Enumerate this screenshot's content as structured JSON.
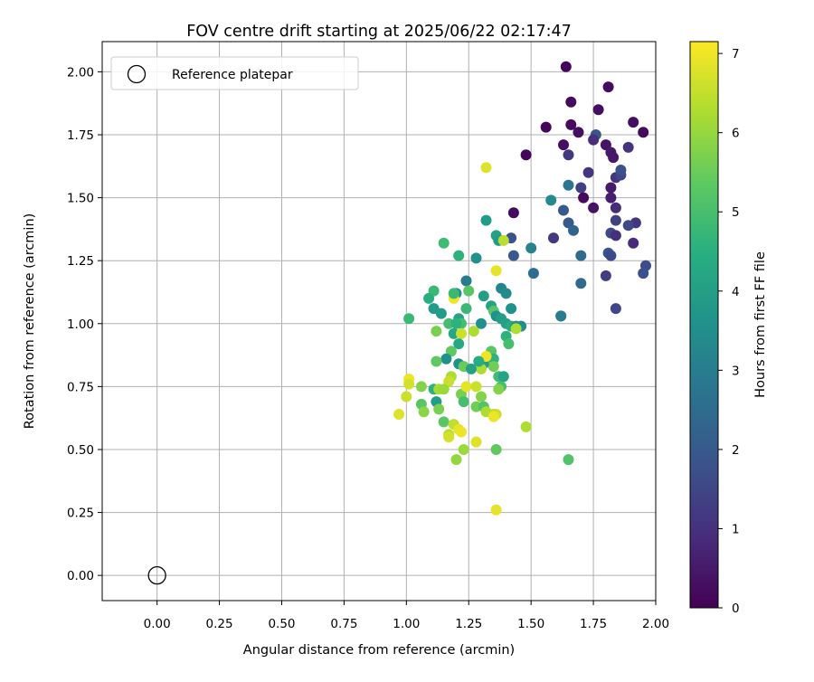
{
  "chart_data": {
    "type": "scatter",
    "title": "FOV centre drift starting at 2025/06/22 02:17:47",
    "xlabel": "Angular distance from reference (arcmin)",
    "ylabel": "Rotation from reference (arcmin)",
    "xlim": [
      -0.22,
      2.0
    ],
    "ylim": [
      -0.1,
      2.12
    ],
    "xticks": [
      "0.00",
      "0.25",
      "0.50",
      "0.75",
      "1.00",
      "1.25",
      "1.50",
      "1.75",
      "2.00"
    ],
    "yticks": [
      "0.00",
      "0.25",
      "0.50",
      "0.75",
      "1.00",
      "1.25",
      "1.50",
      "1.75",
      "2.00"
    ],
    "grid": true,
    "legend": {
      "location": "upper-left",
      "label": "Reference platepar"
    },
    "reference_point": {
      "x": 0.0,
      "y": 0.0
    },
    "colorbar": {
      "label": "Hours from first FF file",
      "colormap": "viridis",
      "range": [
        0,
        7.15
      ],
      "ticks": [
        "0",
        "1",
        "2",
        "3",
        "4",
        "5",
        "6",
        "7"
      ]
    },
    "points": [
      [
        1.64,
        2.02,
        0.1
      ],
      [
        1.81,
        1.94,
        0.2
      ],
      [
        1.66,
        1.88,
        0.2
      ],
      [
        1.77,
        1.85,
        0.3
      ],
      [
        1.66,
        1.79,
        0.2
      ],
      [
        1.56,
        1.78,
        0.1
      ],
      [
        1.69,
        1.76,
        0.3
      ],
      [
        1.91,
        1.8,
        0.3
      ],
      [
        1.95,
        1.76,
        0.2
      ],
      [
        1.63,
        1.71,
        0.3
      ],
      [
        1.8,
        1.71,
        0.4
      ],
      [
        1.82,
        1.68,
        0.5
      ],
      [
        1.83,
        1.66,
        0.5
      ],
      [
        1.48,
        1.67,
        0.1
      ],
      [
        1.89,
        1.7,
        1.1
      ],
      [
        1.65,
        1.67,
        1.2
      ],
      [
        1.76,
        1.75,
        1.9
      ],
      [
        1.75,
        1.73,
        1.0
      ],
      [
        1.73,
        1.6,
        1.1
      ],
      [
        1.84,
        1.58,
        1.1
      ],
      [
        1.86,
        1.59,
        1.5
      ],
      [
        1.86,
        1.61,
        1.8
      ],
      [
        1.7,
        1.54,
        1.4
      ],
      [
        1.82,
        1.54,
        0.5
      ],
      [
        1.65,
        1.55,
        2.8
      ],
      [
        1.58,
        1.49,
        3.4
      ],
      [
        1.71,
        1.5,
        0.2
      ],
      [
        1.82,
        1.5,
        0.6
      ],
      [
        1.75,
        1.46,
        0.4
      ],
      [
        1.84,
        1.46,
        0.9
      ],
      [
        1.63,
        1.45,
        2.0
      ],
      [
        1.43,
        1.44,
        0.2
      ],
      [
        1.65,
        1.4,
        2.0
      ],
      [
        1.84,
        1.41,
        1.4
      ],
      [
        1.82,
        1.36,
        1.6
      ],
      [
        1.84,
        1.35,
        1.0
      ],
      [
        1.92,
        1.4,
        1.1
      ],
      [
        1.89,
        1.39,
        1.6
      ],
      [
        1.59,
        1.34,
        1.2
      ],
      [
        1.67,
        1.37,
        2.3
      ],
      [
        1.42,
        1.34,
        1.8
      ],
      [
        1.91,
        1.32,
        0.9
      ],
      [
        1.81,
        1.28,
        1.9
      ],
      [
        1.82,
        1.27,
        1.6
      ],
      [
        1.7,
        1.27,
        2.5
      ],
      [
        1.43,
        1.27,
        2.0
      ],
      [
        1.96,
        1.23,
        1.7
      ],
      [
        1.95,
        1.2,
        1.8
      ],
      [
        1.8,
        1.19,
        1.3
      ],
      [
        1.7,
        1.16,
        2.5
      ],
      [
        1.84,
        1.06,
        1.5
      ],
      [
        1.62,
        1.03,
        2.0
      ],
      [
        1.62,
        1.03,
        3.0
      ],
      [
        1.51,
        1.2,
        2.6
      ],
      [
        1.5,
        1.3,
        3.2
      ],
      [
        1.32,
        1.41,
        3.9
      ],
      [
        1.36,
        1.35,
        4.1
      ],
      [
        1.15,
        1.32,
        4.9
      ],
      [
        1.21,
        1.27,
        4.6
      ],
      [
        1.28,
        1.26,
        3.6
      ],
      [
        1.37,
        1.33,
        3.9
      ],
      [
        1.39,
        1.33,
        6.4
      ],
      [
        1.32,
        1.62,
        6.8
      ],
      [
        1.24,
        1.17,
        3.0
      ],
      [
        1.2,
        1.12,
        3.6
      ],
      [
        1.25,
        1.13,
        5.3
      ],
      [
        1.11,
        1.13,
        4.8
      ],
      [
        1.09,
        1.1,
        4.5
      ],
      [
        1.31,
        1.11,
        4.0
      ],
      [
        1.38,
        1.14,
        3.3
      ],
      [
        1.4,
        1.12,
        3.4
      ],
      [
        1.36,
        1.21,
        6.9
      ],
      [
        1.19,
        1.1,
        7.0
      ],
      [
        1.19,
        1.12,
        4.8
      ],
      [
        1.24,
        1.06,
        4.8
      ],
      [
        1.34,
        1.07,
        4.1
      ],
      [
        1.35,
        1.05,
        5.3
      ],
      [
        1.42,
        1.06,
        3.6
      ],
      [
        1.11,
        1.06,
        3.9
      ],
      [
        1.14,
        1.04,
        3.9
      ],
      [
        1.21,
        1.02,
        4.2
      ],
      [
        1.22,
        1.0,
        5.0
      ],
      [
        1.36,
        1.03,
        3.6
      ],
      [
        1.38,
        1.02,
        4.0
      ],
      [
        1.4,
        1.0,
        4.1
      ],
      [
        1.42,
        0.99,
        4.4
      ],
      [
        1.44,
        0.99,
        3.6
      ],
      [
        1.46,
        0.99,
        3.5
      ],
      [
        1.44,
        0.98,
        6.3
      ],
      [
        1.3,
        1.0,
        3.6
      ],
      [
        1.01,
        1.02,
        4.8
      ],
      [
        1.17,
        1.0,
        5.0
      ],
      [
        1.2,
        1.0,
        4.6
      ],
      [
        1.19,
        0.96,
        4.3
      ],
      [
        1.22,
        0.96,
        6.6
      ],
      [
        1.27,
        0.97,
        6.3
      ],
      [
        1.12,
        0.97,
        5.7
      ],
      [
        1.4,
        0.95,
        4.6
      ],
      [
        1.41,
        0.92,
        5.0
      ],
      [
        1.21,
        0.92,
        4.3
      ],
      [
        1.18,
        0.89,
        5.4
      ],
      [
        1.16,
        0.86,
        3.6
      ],
      [
        1.34,
        0.89,
        5.3
      ],
      [
        1.32,
        0.85,
        5.9
      ],
      [
        1.35,
        0.86,
        4.6
      ],
      [
        1.35,
        0.83,
        5.6
      ],
      [
        1.31,
        0.84,
        4.0
      ],
      [
        1.32,
        0.87,
        7.0
      ],
      [
        1.12,
        0.85,
        5.4
      ],
      [
        1.21,
        0.84,
        3.6
      ],
      [
        1.23,
        0.83,
        5.5
      ],
      [
        1.3,
        0.82,
        6.3
      ],
      [
        1.37,
        0.79,
        4.9
      ],
      [
        1.39,
        0.79,
        4.2
      ],
      [
        1.38,
        0.75,
        5.0
      ],
      [
        1.37,
        0.74,
        5.8
      ],
      [
        1.18,
        0.79,
        6.3
      ],
      [
        1.17,
        0.77,
        6.6
      ],
      [
        1.01,
        0.78,
        7.0
      ],
      [
        1.01,
        0.76,
        6.7
      ],
      [
        1.06,
        0.75,
        5.8
      ],
      [
        1.11,
        0.74,
        4.6
      ],
      [
        1.13,
        0.74,
        6.2
      ],
      [
        1.15,
        0.74,
        6.1
      ],
      [
        1.22,
        0.72,
        5.7
      ],
      [
        1.24,
        0.75,
        6.9
      ],
      [
        1.28,
        0.75,
        6.6
      ],
      [
        1.3,
        0.71,
        5.8
      ],
      [
        1.0,
        0.71,
        6.6
      ],
      [
        1.06,
        0.68,
        5.3
      ],
      [
        1.12,
        0.69,
        3.9
      ],
      [
        1.13,
        0.66,
        5.7
      ],
      [
        1.07,
        0.65,
        5.9
      ],
      [
        1.23,
        0.69,
        5.0
      ],
      [
        1.28,
        0.67,
        5.6
      ],
      [
        1.31,
        0.67,
        5.2
      ],
      [
        1.32,
        0.65,
        6.3
      ],
      [
        1.35,
        0.64,
        6.4
      ],
      [
        1.36,
        0.64,
        6.6
      ],
      [
        0.97,
        0.64,
        6.8
      ],
      [
        1.15,
        0.61,
        5.3
      ],
      [
        1.19,
        0.6,
        6.5
      ],
      [
        1.21,
        0.58,
        6.9
      ],
      [
        1.17,
        0.56,
        6.4
      ],
      [
        1.22,
        0.57,
        7.0
      ],
      [
        1.48,
        0.59,
        6.3
      ],
      [
        1.17,
        0.55,
        6.7
      ],
      [
        1.23,
        0.5,
        6.1
      ],
      [
        1.36,
        0.5,
        5.4
      ],
      [
        1.2,
        0.46,
        6.0
      ],
      [
        1.65,
        0.46,
        5.2
      ],
      [
        1.36,
        0.26,
        6.9
      ],
      [
        1.28,
        0.53,
        6.8
      ],
      [
        1.35,
        0.63,
        7.0
      ],
      [
        1.26,
        0.82,
        4.1
      ],
      [
        1.29,
        0.85,
        4.4
      ]
    ]
  }
}
